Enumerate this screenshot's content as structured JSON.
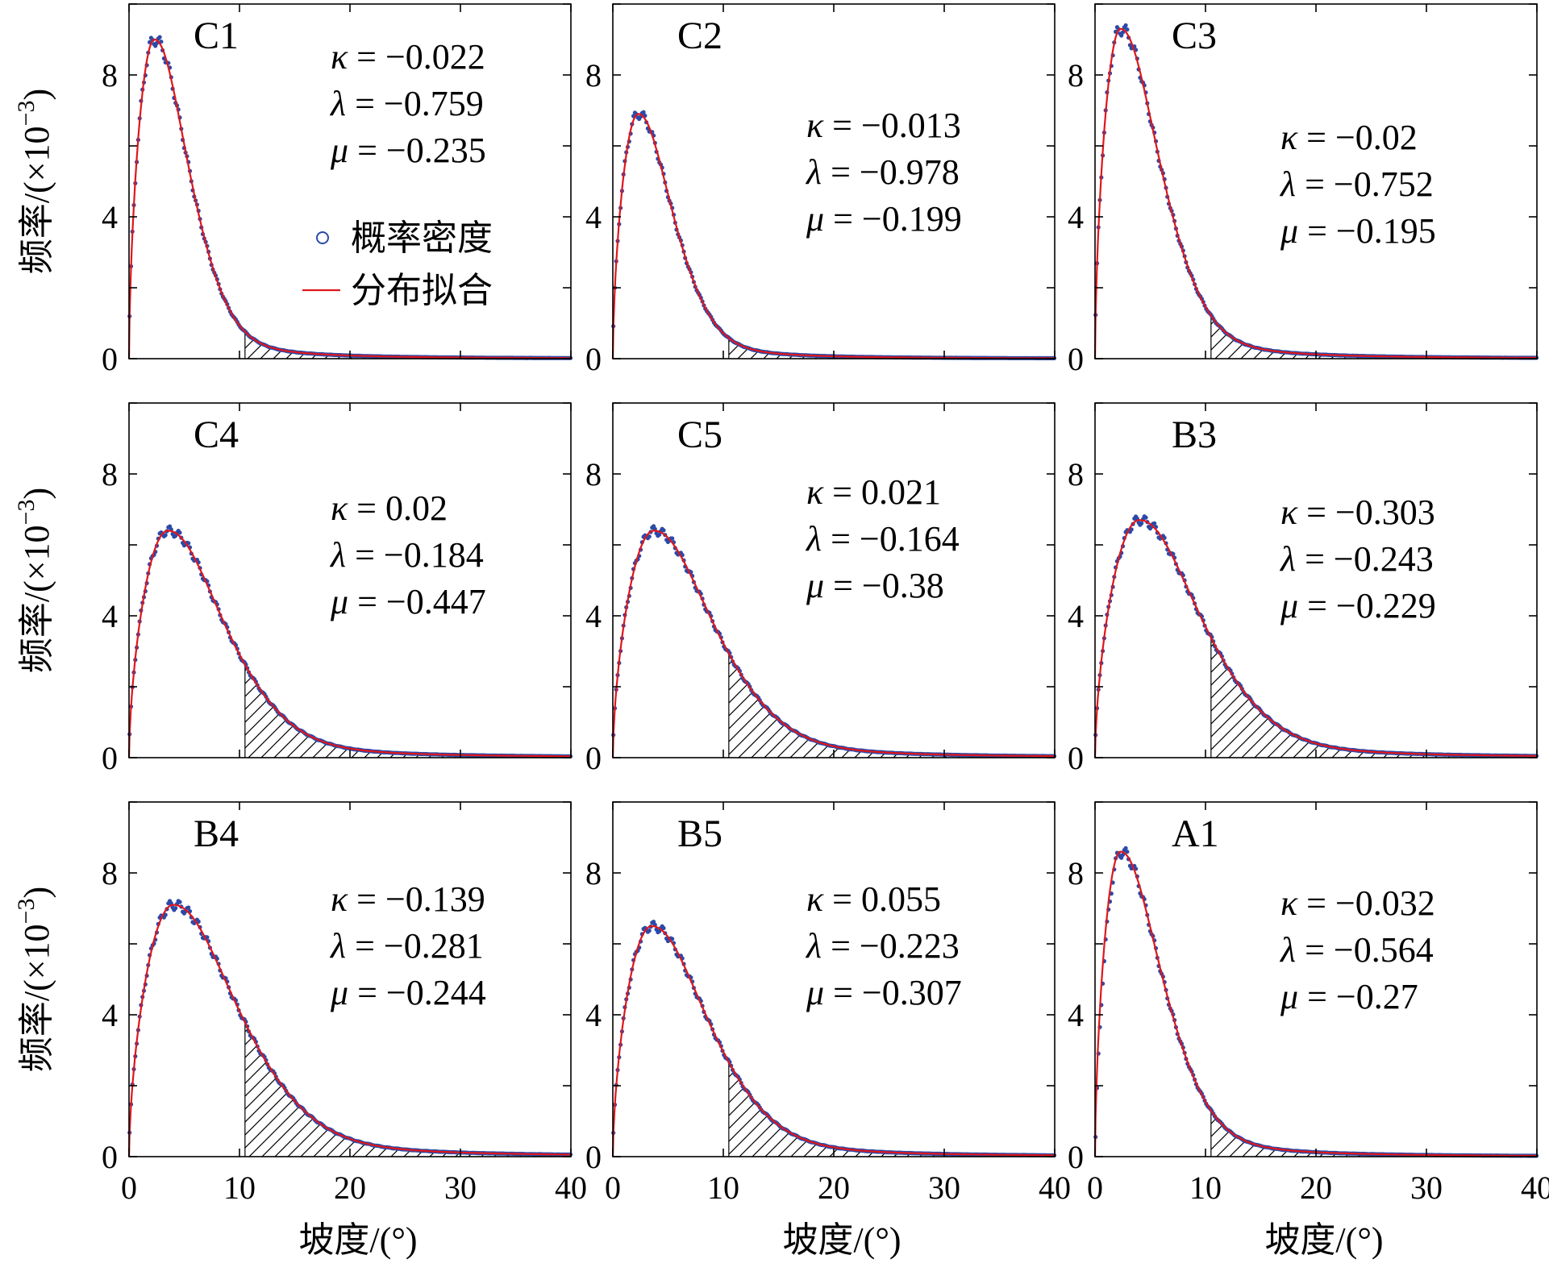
{
  "chart_data": [
    {
      "type": "line",
      "title": "C1",
      "kappa": "-0.022",
      "lambda": "-0.759",
      "mu": "-0.235",
      "peak_x": 2.3,
      "peak_y": 9.0,
      "sd_left": 0.0,
      "sd_right": 3.5,
      "density_offset": 0.0,
      "shade_from": 10.5
    },
    {
      "type": "line",
      "title": "C2",
      "kappa": "-0.013",
      "lambda": "-0.978",
      "mu": "-0.199",
      "peak_x": 2.3,
      "peak_y": 6.9,
      "sd_left": 0.0,
      "sd_right": 3.5,
      "density_offset": 0.0,
      "shade_from": 10.5
    },
    {
      "type": "line",
      "title": "C3",
      "kappa": "-0.02",
      "lambda": "-0.752",
      "mu": "-0.195",
      "peak_x": 2.3,
      "peak_y": 9.3,
      "sd_left": 0.0,
      "sd_right": 4.0,
      "density_offset": 0.0,
      "shade_from": 10.5
    },
    {
      "type": "line",
      "title": "C4",
      "kappa": "0.02",
      "lambda": "-0.184",
      "mu": "-0.447",
      "peak_x": 3.5,
      "peak_y": 6.4,
      "sd_left": 0.0,
      "sd_right": 5.7,
      "density_offset": 0.0,
      "shade_from": 10.5
    },
    {
      "type": "line",
      "title": "C5",
      "kappa": "0.021",
      "lambda": "-0.164",
      "mu": "-0.38",
      "peak_x": 3.7,
      "peak_y": 6.4,
      "sd_left": 0.0,
      "sd_right": 6.0,
      "density_offset": 0.0,
      "shade_from": 10.5
    },
    {
      "type": "line",
      "title": "B3",
      "kappa": "-0.303",
      "lambda": "-0.243",
      "mu": "-0.229",
      "peak_x": 4.0,
      "peak_y": 6.7,
      "sd_left": 0.0,
      "sd_right": 6.2,
      "density_offset": 0.0,
      "shade_from": 10.5
    },
    {
      "type": "line",
      "title": "B4",
      "kappa": "-0.139",
      "lambda": "-0.281",
      "mu": "-0.244",
      "peak_x": 4.0,
      "peak_y": 7.1,
      "sd_left": 0.0,
      "sd_right": 6.5,
      "density_offset": 0.0,
      "shade_from": 10.5
    },
    {
      "type": "line",
      "title": "B5",
      "kappa": "0.055",
      "lambda": "-0.223",
      "mu": "-0.307",
      "peak_x": 3.5,
      "peak_y": 6.5,
      "sd_left": 0.0,
      "sd_right": 5.7,
      "density_offset": 0.0,
      "shade_from": 10.5
    },
    {
      "type": "line",
      "title": "A1",
      "kappa": "-0.032",
      "lambda": "-0.564",
      "mu": "-0.27",
      "peak_x": 2.3,
      "peak_y": 8.6,
      "sd_left": 0.0,
      "sd_right": 4.2,
      "density_offset": 0.6,
      "shade_from": 10.5
    }
  ],
  "axes": {
    "xlabel": "坡度/(°)",
    "ylabel_main": "频率/(×10",
    "ylabel_exp": "−3",
    "ylabel_close": ")",
    "xlim": [
      0,
      40
    ],
    "ylim": [
      0,
      10
    ],
    "x_ticks": [
      "0",
      "10",
      "20",
      "30",
      "40"
    ],
    "y_ticks": [
      "0",
      "4",
      "8"
    ]
  },
  "legend": {
    "density_label": "概率密度",
    "fit_label": "分布拟合"
  },
  "params": {
    "kappa_symbol": "κ",
    "lambda_symbol": "λ",
    "mu_symbol": "μ",
    "equals": " = "
  },
  "colors": {
    "density": "#2b4aa8",
    "fit": "#e0161b"
  }
}
